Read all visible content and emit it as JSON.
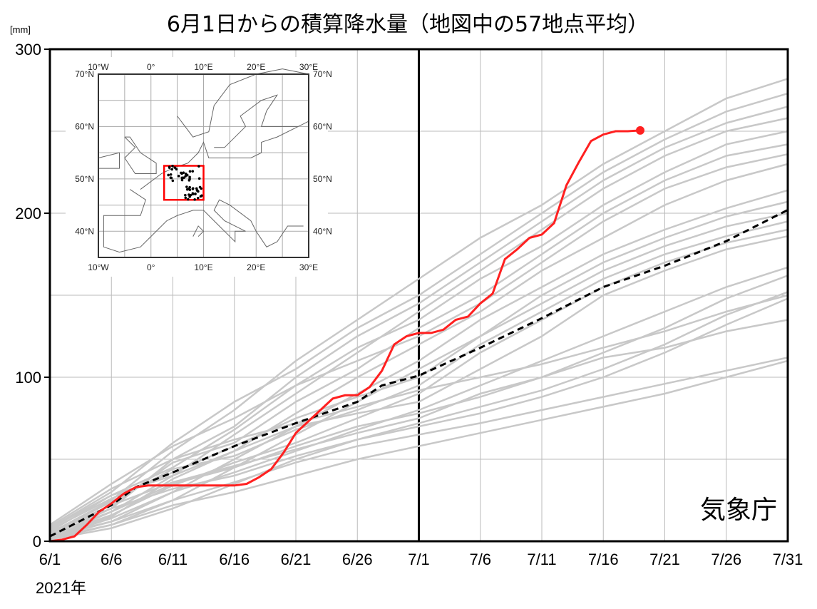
{
  "chart_data": {
    "type": "line",
    "title": "6月1日からの積算降水量（地図中の57地点平均）",
    "ylabel": "[mm]",
    "xlabel": "2021年",
    "watermark": "気象庁",
    "ylim": [
      0,
      300
    ],
    "yticks": [
      "0",
      "100",
      "200",
      "300"
    ],
    "xticks": [
      "6/1",
      "6/6",
      "6/11",
      "6/16",
      "6/21",
      "6/26",
      "7/1",
      "7/6",
      "7/11",
      "7/16",
      "7/21",
      "7/26",
      "7/31"
    ],
    "grid": true,
    "vertical_marker": "7/1",
    "colors": {
      "highlight": "#ff2020",
      "mean": "#000000",
      "stations": "#c8c8c8"
    },
    "highlight_series": {
      "x": [
        "6/1",
        "6/2",
        "6/3",
        "6/4",
        "6/5",
        "6/6",
        "6/7",
        "6/8",
        "6/9",
        "6/16",
        "6/17",
        "6/18",
        "6/19",
        "6/20",
        "6/21",
        "6/22",
        "6/23",
        "6/24",
        "6/25",
        "6/26",
        "6/27",
        "6/28",
        "6/29",
        "6/30",
        "7/1",
        "7/2",
        "7/3",
        "7/4",
        "7/5",
        "7/6",
        "7/7",
        "7/8",
        "7/9",
        "7/10",
        "7/11",
        "7/12",
        "7/13",
        "7/14",
        "7/15",
        "7/16",
        "7/17",
        "7/18",
        "7/19"
      ],
      "y": [
        0,
        1,
        3,
        10,
        18,
        23,
        29,
        33,
        34,
        34,
        35,
        39,
        44,
        54,
        66,
        73,
        80,
        87,
        89,
        89,
        94,
        104,
        120,
        125,
        127,
        127,
        129,
        135,
        137,
        145,
        151,
        172,
        178,
        185,
        187,
        194,
        217,
        231,
        244,
        248,
        250,
        250,
        250.5
      ]
    },
    "mean_series": {
      "x": [
        "6/1",
        "6/6",
        "6/8",
        "6/11",
        "6/16",
        "6/21",
        "6/26",
        "6/28",
        "7/1",
        "7/6",
        "7/11",
        "7/16",
        "7/21",
        "7/26",
        "7/31"
      ],
      "y": [
        3,
        22,
        33,
        42,
        58,
        72,
        85,
        95,
        101,
        118,
        136,
        155,
        168,
        183,
        202
      ]
    },
    "station_series_x": [
      "6/1",
      "6/6",
      "6/11",
      "6/16",
      "6/21",
      "6/26",
      "7/1",
      "7/6",
      "7/11",
      "7/16",
      "7/21",
      "7/26",
      "7/31"
    ],
    "station_series": [
      [
        5,
        25,
        55,
        80,
        110,
        135,
        160,
        185,
        205,
        230,
        250,
        270,
        282
      ],
      [
        8,
        30,
        60,
        85,
        105,
        130,
        150,
        175,
        200,
        225,
        245,
        262,
        273
      ],
      [
        3,
        20,
        50,
        70,
        100,
        125,
        145,
        170,
        195,
        220,
        240,
        255,
        265
      ],
      [
        2,
        18,
        40,
        65,
        90,
        115,
        140,
        165,
        190,
        215,
        235,
        250,
        258
      ],
      [
        6,
        28,
        45,
        68,
        95,
        118,
        135,
        160,
        180,
        205,
        225,
        242,
        250
      ],
      [
        4,
        22,
        48,
        60,
        85,
        105,
        130,
        150,
        175,
        200,
        220,
        235,
        242
      ],
      [
        10,
        35,
        58,
        75,
        95,
        110,
        125,
        145,
        170,
        195,
        215,
        228,
        236
      ],
      [
        3,
        15,
        38,
        55,
        78,
        100,
        120,
        140,
        165,
        185,
        205,
        220,
        230
      ],
      [
        2,
        12,
        30,
        50,
        70,
        90,
        110,
        135,
        155,
        175,
        190,
        203,
        214
      ],
      [
        7,
        26,
        42,
        58,
        75,
        88,
        100,
        125,
        150,
        170,
        185,
        198,
        207
      ],
      [
        1,
        10,
        25,
        45,
        65,
        85,
        105,
        125,
        145,
        165,
        180,
        192,
        200
      ],
      [
        5,
        24,
        44,
        52,
        68,
        80,
        95,
        120,
        140,
        160,
        175,
        186,
        195
      ],
      [
        3,
        16,
        34,
        48,
        60,
        75,
        90,
        115,
        135,
        155,
        170,
        182,
        190
      ],
      [
        8,
        28,
        40,
        55,
        70,
        78,
        85,
        105,
        125,
        150,
        165,
        178,
        186
      ],
      [
        2,
        14,
        30,
        42,
        55,
        68,
        80,
        95,
        110,
        125,
        140,
        155,
        167
      ],
      [
        4,
        18,
        35,
        45,
        58,
        70,
        78,
        88,
        100,
        115,
        130,
        148,
        162
      ],
      [
        1,
        8,
        20,
        35,
        50,
        62,
        72,
        82,
        92,
        105,
        120,
        138,
        152
      ],
      [
        6,
        20,
        32,
        40,
        52,
        62,
        70,
        78,
        88,
        100,
        115,
        132,
        148
      ],
      [
        3,
        12,
        25,
        36,
        48,
        58,
        65,
        72,
        80,
        88,
        96,
        104,
        112
      ],
      [
        2,
        10,
        22,
        30,
        40,
        50,
        58,
        66,
        74,
        82,
        90,
        100,
        110
      ],
      [
        5,
        22,
        36,
        46,
        56,
        66,
        75,
        90,
        100,
        112,
        118,
        128,
        135
      ],
      [
        9,
        32,
        50,
        62,
        72,
        82,
        92,
        100,
        108,
        118,
        128,
        140,
        150
      ]
    ]
  },
  "inset_map": {
    "lon_labels": [
      "10°W",
      "0°",
      "10°E",
      "20°E",
      "30°E"
    ],
    "lat_labels": [
      "70°N",
      "60°N",
      "50°N",
      "40°N"
    ],
    "region_color": "#ff0000"
  }
}
